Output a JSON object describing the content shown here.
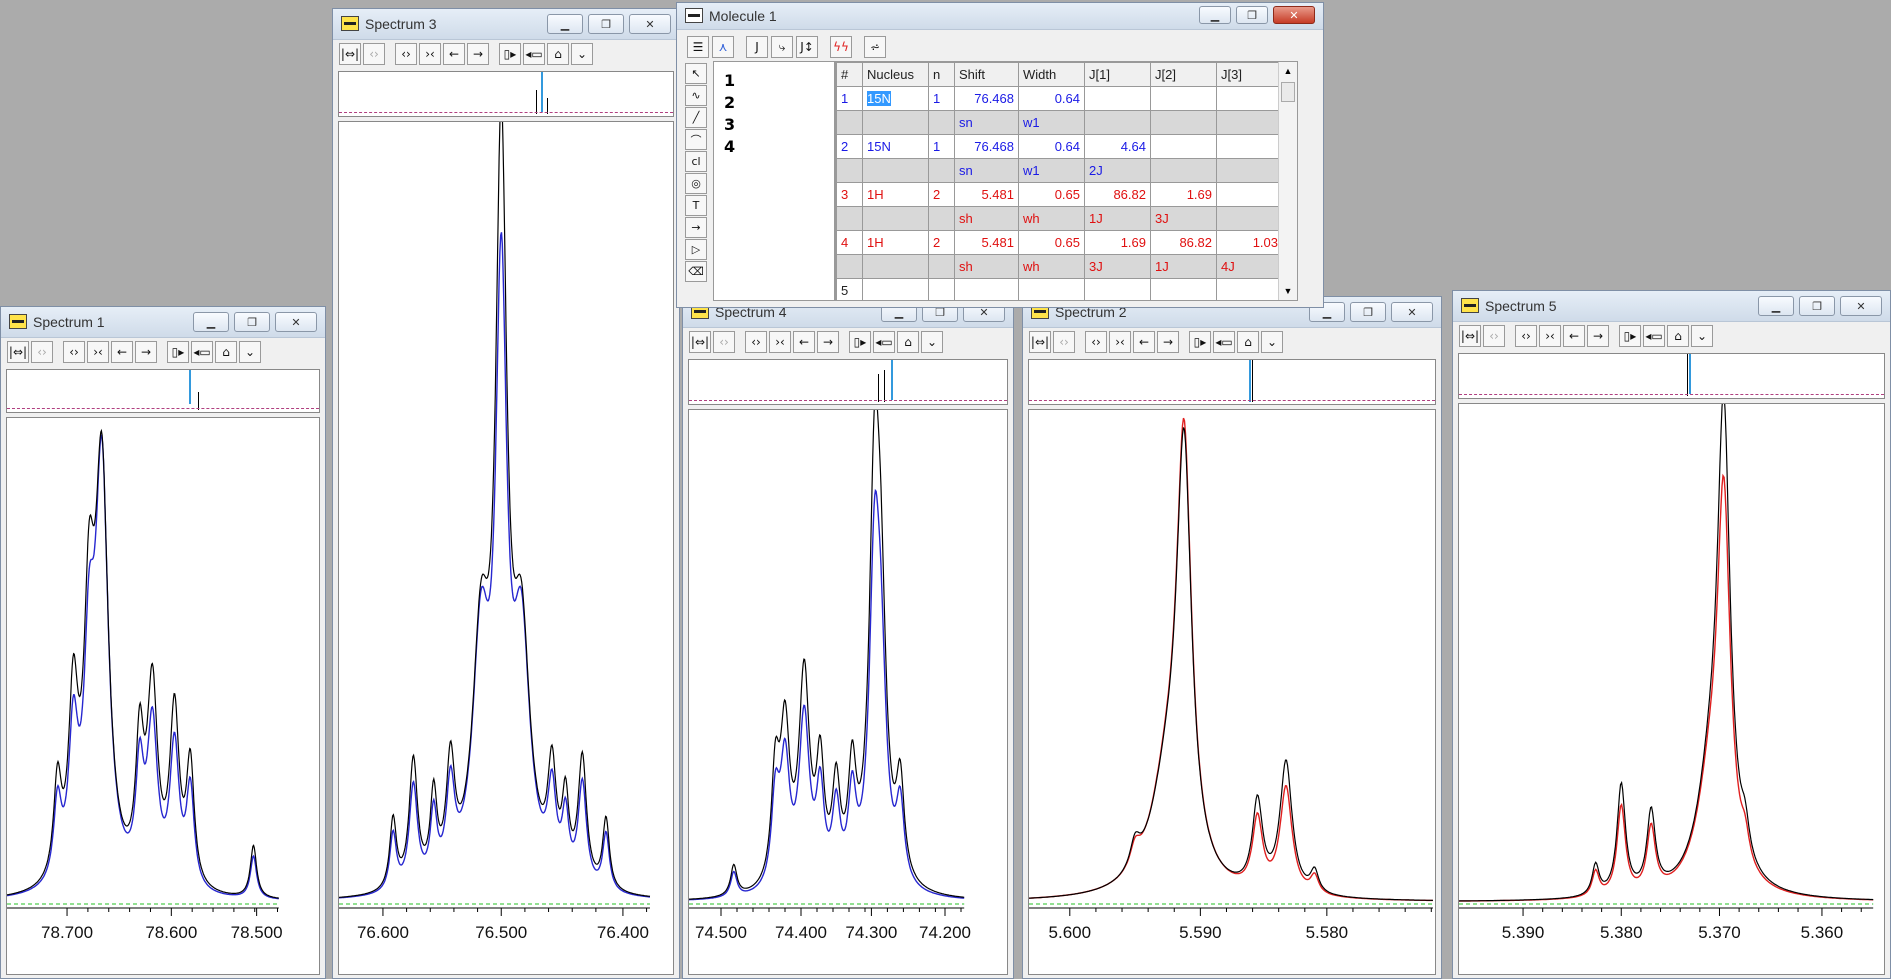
{
  "colors": {
    "fit_blue": "#2727d0",
    "fit_red": "#e02020",
    "experiment": "#000000",
    "baseline": "#25c225",
    "row_blue": "#1a1ae6",
    "row_red": "#e01010"
  },
  "spectrum_windows": [
    {
      "title": "Spectrum 1",
      "ticks": [
        "78.700",
        "78.600",
        "78.500"
      ],
      "fit_color": "blue",
      "maximize_icon": "maximize-icon",
      "close_icon": "close-icon"
    },
    {
      "title": "Spectrum 3",
      "ticks": [
        "76.600",
        "76.500",
        "76.400"
      ],
      "fit_color": "blue"
    },
    {
      "title": "Spectrum 4",
      "ticks": [
        "74.500",
        "74.400",
        "74.300",
        "74.200"
      ],
      "fit_color": "blue"
    },
    {
      "title": "Spectrum 2",
      "ticks": [
        "5.600",
        "5.590",
        "5.580"
      ],
      "fit_color": "red"
    },
    {
      "title": "Spectrum 5",
      "ticks": [
        "5.390",
        "5.380",
        "5.370",
        "5.360"
      ],
      "fit_color": "red"
    }
  ],
  "toolbar_icons": [
    "fit-width-icon",
    "fit-width-disabled-icon",
    "expand-icon",
    "contract-icon",
    "arrow-left-icon",
    "arrow-right-icon",
    "next-page-icon",
    "zoom-box-icon",
    "scale-up-icon",
    "scale-down-icon"
  ],
  "toolbar_glyphs": [
    "|⇔|",
    "‹›",
    "‹›",
    "›‹",
    "←",
    "→",
    "▯▸",
    "◂▭",
    "⌂",
    "⌄"
  ],
  "molecule": {
    "title": "Molecule 1",
    "atoms": [
      "1",
      "2",
      "3",
      "4"
    ],
    "columns": [
      "#",
      "Nucleus",
      "n",
      "Shift",
      "Width",
      "J[1]",
      "J[2]",
      "J[3]"
    ],
    "rows": [
      {
        "id": "1",
        "nucleus": "15N",
        "n": "1",
        "shift": "76.468",
        "width": "0.64",
        "j1": "",
        "j2": "",
        "j3": "",
        "color": "blue",
        "sub": [
          "sn",
          "w1",
          "",
          "",
          ""
        ]
      },
      {
        "id": "2",
        "nucleus": "15N",
        "n": "1",
        "shift": "76.468",
        "width": "0.64",
        "j1": "4.64",
        "j2": "",
        "j3": "",
        "color": "blue",
        "sub": [
          "sn",
          "w1",
          "2J",
          "",
          ""
        ]
      },
      {
        "id": "3",
        "nucleus": "1H",
        "n": "2",
        "shift": "5.481",
        "width": "0.65",
        "j1": "86.82",
        "j2": "1.69",
        "j3": "",
        "color": "red",
        "sub": [
          "sh",
          "wh",
          "1J",
          "3J",
          ""
        ]
      },
      {
        "id": "4",
        "nucleus": "1H",
        "n": "2",
        "shift": "5.481",
        "width": "0.65",
        "j1": "1.69",
        "j2": "86.82",
        "j3": "1.03",
        "color": "red",
        "sub": [
          "sh",
          "wh",
          "3J",
          "1J",
          "4J"
        ]
      },
      {
        "id": "5",
        "nucleus": "",
        "n": "",
        "shift": "",
        "width": "",
        "j1": "",
        "j2": "",
        "j3": "",
        "color": "blue",
        "sub": null
      }
    ]
  }
}
